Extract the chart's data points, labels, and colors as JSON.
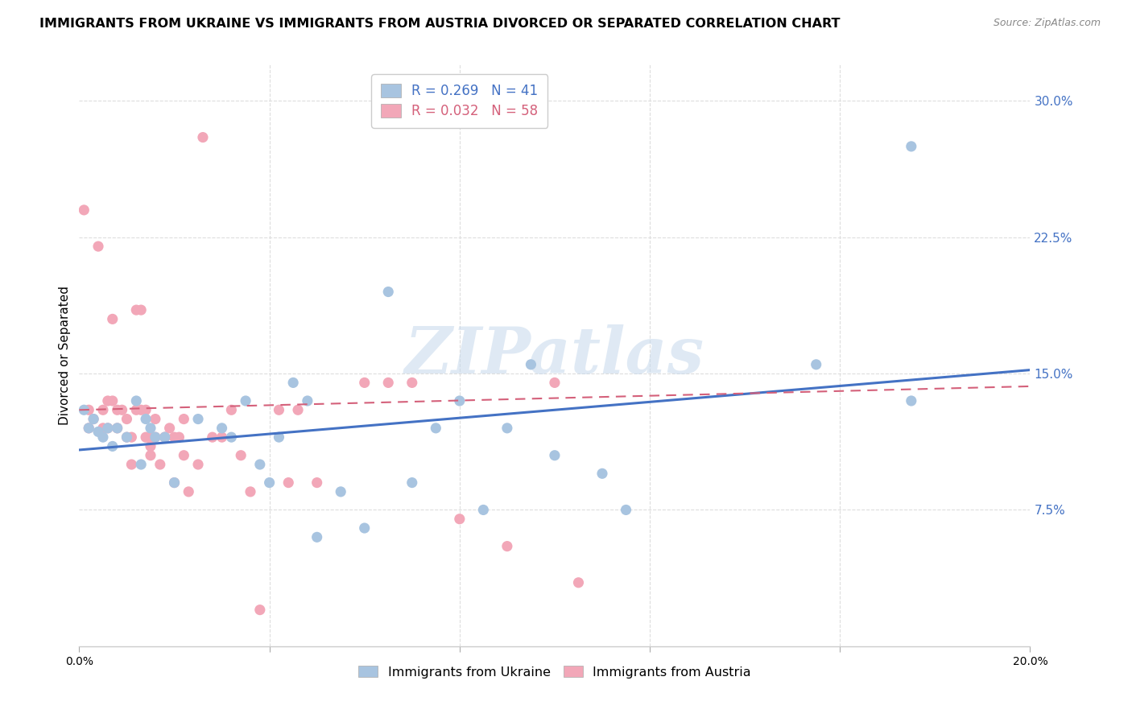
{
  "title": "IMMIGRANTS FROM UKRAINE VS IMMIGRANTS FROM AUSTRIA DIVORCED OR SEPARATED CORRELATION CHART",
  "source": "Source: ZipAtlas.com",
  "ylabel": "Divorced or Separated",
  "xlim": [
    0.0,
    0.2
  ],
  "ylim": [
    0.0,
    0.32
  ],
  "ukraine_color": "#a8c4e0",
  "austria_color": "#f2a7b8",
  "ukraine_line_color": "#4472c4",
  "austria_line_color": "#d4607a",
  "ukraine_R": 0.269,
  "ukraine_N": 41,
  "austria_R": 0.032,
  "austria_N": 58,
  "ukraine_line_x": [
    0.0,
    0.2
  ],
  "ukraine_line_y": [
    0.108,
    0.152
  ],
  "austria_line_x": [
    0.0,
    0.2
  ],
  "austria_line_y": [
    0.13,
    0.143
  ],
  "ukraine_scatter_x": [
    0.001,
    0.002,
    0.003,
    0.004,
    0.005,
    0.006,
    0.007,
    0.008,
    0.01,
    0.012,
    0.013,
    0.014,
    0.015,
    0.016,
    0.018,
    0.02,
    0.025,
    0.03,
    0.032,
    0.035,
    0.038,
    0.04,
    0.042,
    0.045,
    0.048,
    0.05,
    0.055,
    0.06,
    0.065,
    0.07,
    0.075,
    0.08,
    0.085,
    0.09,
    0.095,
    0.1,
    0.11,
    0.115,
    0.155,
    0.175,
    0.175
  ],
  "ukraine_scatter_y": [
    0.13,
    0.12,
    0.125,
    0.118,
    0.115,
    0.12,
    0.11,
    0.12,
    0.115,
    0.135,
    0.1,
    0.125,
    0.12,
    0.115,
    0.115,
    0.09,
    0.125,
    0.12,
    0.115,
    0.135,
    0.1,
    0.09,
    0.115,
    0.145,
    0.135,
    0.06,
    0.085,
    0.065,
    0.195,
    0.09,
    0.12,
    0.135,
    0.075,
    0.12,
    0.155,
    0.105,
    0.095,
    0.075,
    0.155,
    0.135,
    0.275
  ],
  "austria_scatter_x": [
    0.001,
    0.002,
    0.002,
    0.003,
    0.004,
    0.005,
    0.005,
    0.006,
    0.006,
    0.007,
    0.007,
    0.008,
    0.008,
    0.009,
    0.01,
    0.01,
    0.011,
    0.011,
    0.012,
    0.012,
    0.013,
    0.013,
    0.014,
    0.014,
    0.015,
    0.015,
    0.015,
    0.016,
    0.016,
    0.017,
    0.018,
    0.018,
    0.019,
    0.02,
    0.02,
    0.021,
    0.022,
    0.022,
    0.023,
    0.025,
    0.026,
    0.028,
    0.03,
    0.032,
    0.034,
    0.036,
    0.038,
    0.042,
    0.044,
    0.046,
    0.05,
    0.06,
    0.065,
    0.07,
    0.08,
    0.09,
    0.1,
    0.105
  ],
  "austria_scatter_y": [
    0.24,
    0.13,
    0.12,
    0.125,
    0.22,
    0.12,
    0.13,
    0.12,
    0.135,
    0.135,
    0.18,
    0.13,
    0.12,
    0.13,
    0.115,
    0.125,
    0.1,
    0.115,
    0.185,
    0.13,
    0.185,
    0.13,
    0.115,
    0.13,
    0.115,
    0.11,
    0.105,
    0.125,
    0.115,
    0.1,
    0.115,
    0.115,
    0.12,
    0.09,
    0.115,
    0.115,
    0.125,
    0.105,
    0.085,
    0.1,
    0.28,
    0.115,
    0.115,
    0.13,
    0.105,
    0.085,
    0.02,
    0.13,
    0.09,
    0.13,
    0.09,
    0.145,
    0.145,
    0.145,
    0.07,
    0.055,
    0.145,
    0.035
  ],
  "watermark": "ZIPatlas",
  "background_color": "#ffffff",
  "grid_color": "#dddddd",
  "title_fontsize": 11.5,
  "axis_label_fontsize": 11,
  "tick_fontsize": 10,
  "legend_fontsize": 12,
  "source_fontsize": 9
}
